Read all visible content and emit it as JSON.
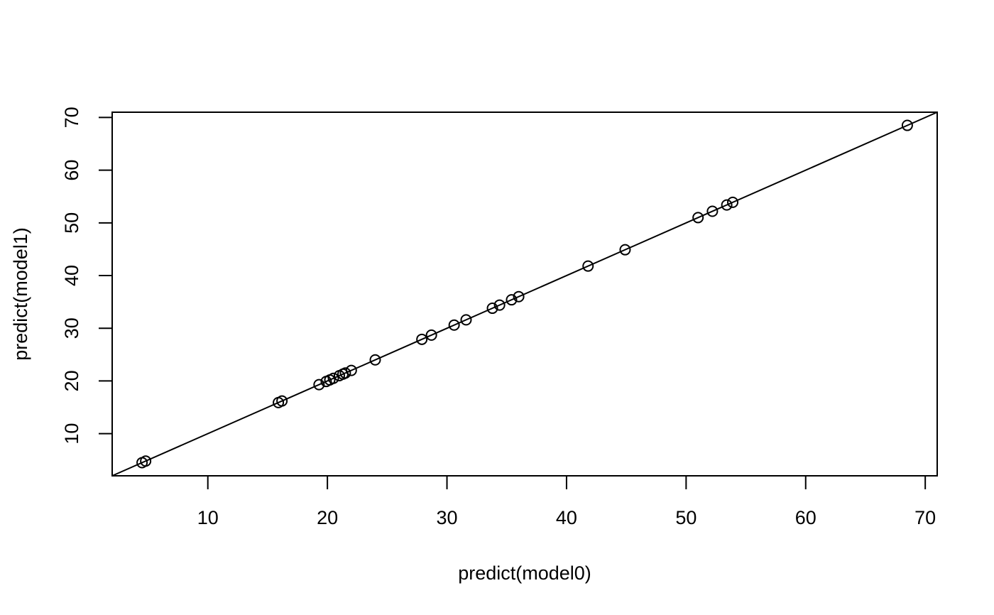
{
  "chart_data": {
    "type": "scatter",
    "title": "",
    "xlabel": "predict(model0)",
    "ylabel": "predict(model1)",
    "xlim": [
      2,
      71
    ],
    "ylim": [
      2,
      71
    ],
    "xticks": [
      10,
      20,
      30,
      40,
      50,
      60,
      70
    ],
    "yticks": [
      10,
      20,
      30,
      40,
      50,
      60,
      70
    ],
    "grid": false,
    "legend": "none",
    "marker": "open-circle",
    "reference_line": {
      "intercept": 0,
      "slope": 1
    },
    "colors": {
      "points": "#000000",
      "line": "#000000",
      "background": "#ffffff"
    },
    "points": [
      {
        "x": 4.5,
        "y": 4.5
      },
      {
        "x": 4.8,
        "y": 4.8
      },
      {
        "x": 15.9,
        "y": 15.9
      },
      {
        "x": 16.2,
        "y": 16.2
      },
      {
        "x": 19.3,
        "y": 19.3
      },
      {
        "x": 19.9,
        "y": 19.9
      },
      {
        "x": 20.2,
        "y": 20.2
      },
      {
        "x": 20.5,
        "y": 20.5
      },
      {
        "x": 21.0,
        "y": 21.0
      },
      {
        "x": 21.3,
        "y": 21.3
      },
      {
        "x": 21.5,
        "y": 21.5
      },
      {
        "x": 22.0,
        "y": 22.0
      },
      {
        "x": 24.0,
        "y": 24.0
      },
      {
        "x": 27.9,
        "y": 27.9
      },
      {
        "x": 28.7,
        "y": 28.7
      },
      {
        "x": 30.6,
        "y": 30.6
      },
      {
        "x": 31.6,
        "y": 31.6
      },
      {
        "x": 33.8,
        "y": 33.8
      },
      {
        "x": 34.4,
        "y": 34.4
      },
      {
        "x": 35.4,
        "y": 35.4
      },
      {
        "x": 36.0,
        "y": 36.0
      },
      {
        "x": 41.8,
        "y": 41.8
      },
      {
        "x": 44.9,
        "y": 44.9
      },
      {
        "x": 51.0,
        "y": 51.0
      },
      {
        "x": 52.2,
        "y": 52.2
      },
      {
        "x": 53.4,
        "y": 53.4
      },
      {
        "x": 53.9,
        "y": 53.9
      },
      {
        "x": 68.5,
        "y": 68.5
      }
    ]
  }
}
